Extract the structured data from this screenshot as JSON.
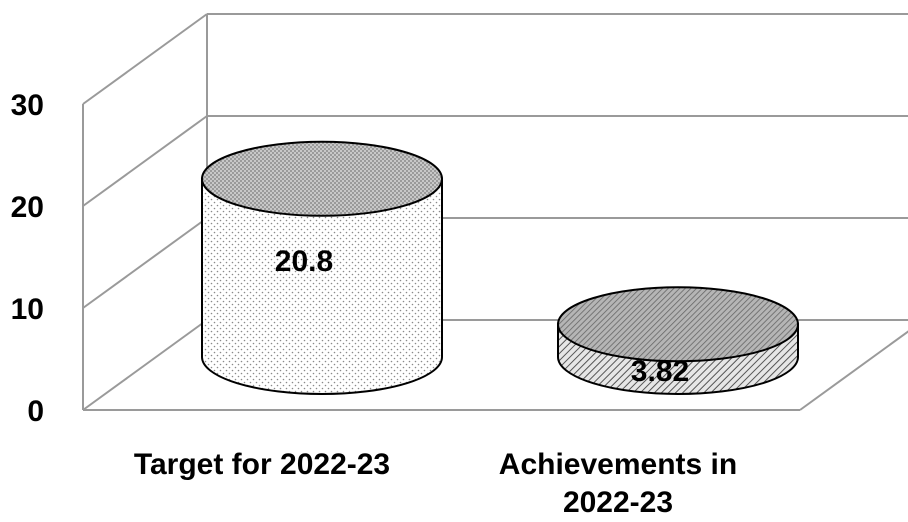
{
  "chart_data": {
    "type": "bar",
    "title": "",
    "xlabel": "",
    "ylabel": "",
    "ylim": [
      0,
      30
    ],
    "yticks": [
      0,
      10,
      20,
      30
    ],
    "grid": true,
    "categories": [
      {
        "lines": [
          "Target for 2022-23"
        ]
      },
      {
        "lines": [
          "Achievements in",
          "2022-23"
        ]
      }
    ],
    "series": [
      {
        "values": [
          20.8,
          3.82
        ],
        "data_labels": [
          "20.8",
          "3.82"
        ]
      }
    ]
  }
}
